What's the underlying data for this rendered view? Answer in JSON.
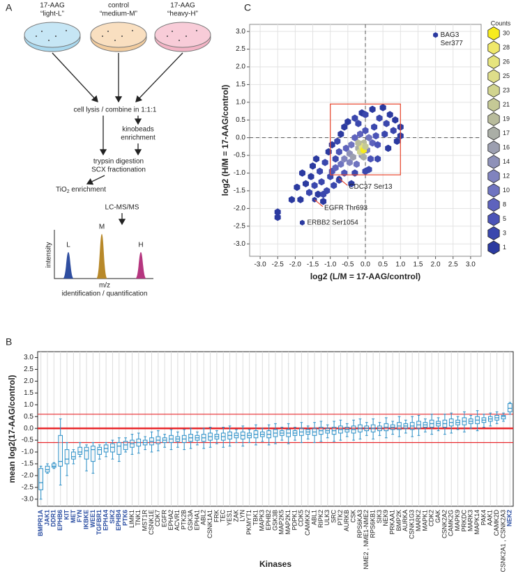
{
  "panels": {
    "a": "A",
    "b": "B",
    "c": "C"
  },
  "diagram": {
    "dish1": [
      "17-AAG",
      "“light-L”"
    ],
    "dish2": [
      "control",
      "“medium-M”"
    ],
    "dish3": [
      "17-AAG",
      "“heavy-H”"
    ],
    "lysis": "cell lysis / combine in 1:1:1",
    "kinobeads": [
      "kinobeads",
      "enrichment"
    ],
    "digestion": [
      "trypsin digestion",
      "SCX fractionation"
    ],
    "tio2": {
      "main": "TiO",
      "sub": "2",
      "rest": " enrichment"
    },
    "lcms": "LC-MS/MS",
    "peaks": [
      "L",
      "M",
      "H"
    ],
    "intensity": "intensity",
    "mz": "m/z",
    "ident": "identification / quantification"
  },
  "chart_data": [
    {
      "type": "hexbin",
      "xlabel": "log2 (L/M  = 17-AAG/control)",
      "ylabel": "log2 (H/M = 17-AAG/control)",
      "xlim": [
        -3.3,
        3.3
      ],
      "ylim": [
        -3.35,
        3.2
      ],
      "xticks": [
        {
          "value": -3,
          "label": "-3.0"
        },
        {
          "value": -2.5,
          "label": "-2.5"
        },
        {
          "value": -2,
          "label": "-2.0"
        },
        {
          "value": -1.5,
          "label": "-1.5"
        },
        {
          "value": -1,
          "label": "-1.0"
        },
        {
          "value": -0.5,
          "label": "-0.5"
        },
        {
          "value": 0,
          "label": "0.0"
        },
        {
          "value": 0.5,
          "label": "0.5"
        },
        {
          "value": 1,
          "label": "1.0"
        },
        {
          "value": 1.5,
          "label": "1.5"
        },
        {
          "value": 2,
          "label": "2.0"
        },
        {
          "value": 2.5,
          "label": "2.5"
        },
        {
          "value": 3,
          "label": "3.0"
        }
      ],
      "yticks": [
        {
          "value": -3,
          "label": "-3.0"
        },
        {
          "value": -2.5,
          "label": "-2.5"
        },
        {
          "value": -2,
          "label": "-2.0"
        },
        {
          "value": -1.5,
          "label": "-1.5"
        },
        {
          "value": -1,
          "label": "-1.0"
        },
        {
          "value": -0.5,
          "label": "-0.5"
        },
        {
          "value": 0,
          "label": "0.0"
        },
        {
          "value": 0.5,
          "label": "0.5"
        },
        {
          "value": 1,
          "label": "1.0"
        },
        {
          "value": 1.5,
          "label": "1.5"
        },
        {
          "value": 2,
          "label": "2.0"
        },
        {
          "value": 2.5,
          "label": "2.5"
        },
        {
          "value": 3,
          "label": "3.0"
        }
      ],
      "grid": true,
      "dashed_lines": {
        "x": 0,
        "y": 0
      },
      "highlight_box": {
        "xlim": [
          -1.0,
          1.0
        ],
        "ylim": [
          -1.05,
          0.95
        ],
        "color": "#e8452c"
      },
      "points": [
        [
          -2.5,
          -2.1,
          1
        ],
        [
          -2.5,
          -2.25,
          1
        ],
        [
          -2.1,
          -1.75,
          1
        ],
        [
          -1.95,
          -1.4,
          1
        ],
        [
          -1.85,
          -1.75,
          1
        ],
        [
          -1.8,
          -1.0,
          1
        ],
        [
          -1.7,
          -1.3,
          1
        ],
        [
          -1.6,
          -1.55,
          2
        ],
        [
          -1.55,
          -1.1,
          1
        ],
        [
          -1.5,
          -0.8,
          1
        ],
        [
          -1.45,
          -1.35,
          2
        ],
        [
          -1.4,
          -0.6,
          1
        ],
        [
          -1.35,
          -1.6,
          1
        ],
        [
          -1.3,
          -0.95,
          2
        ],
        [
          -1.25,
          -1.25,
          3
        ],
        [
          -1.2,
          -1.8,
          1
        ],
        [
          -1.15,
          -0.7,
          2
        ],
        [
          -1.1,
          -1.5,
          2
        ],
        [
          -1.05,
          -0.4,
          1
        ],
        [
          -1.0,
          -1.1,
          3
        ],
        [
          -0.95,
          -0.2,
          1
        ],
        [
          -0.9,
          -1.35,
          3
        ],
        [
          -0.85,
          -0.6,
          3
        ],
        [
          -0.8,
          -0.1,
          2
        ],
        [
          -0.75,
          -1.2,
          3
        ],
        [
          -0.7,
          0.1,
          1
        ],
        [
          -0.6,
          0.3,
          1
        ],
        [
          -0.5,
          0.45,
          1
        ],
        [
          -0.4,
          -1.3,
          1
        ],
        [
          -0.3,
          0.55,
          2
        ],
        [
          -0.2,
          0.4,
          3
        ],
        [
          -0.1,
          0.7,
          1
        ],
        [
          0,
          0.65,
          2
        ],
        [
          0.1,
          -0.9,
          2
        ],
        [
          0.2,
          0.8,
          1
        ],
        [
          0.25,
          0.3,
          3
        ],
        [
          0.35,
          -0.6,
          2
        ],
        [
          0.4,
          0.55,
          2
        ],
        [
          0.5,
          0.85,
          1
        ],
        [
          0.55,
          0.1,
          3
        ],
        [
          0.6,
          0.4,
          2
        ],
        [
          0.65,
          -0.3,
          1
        ],
        [
          0.7,
          0.65,
          1
        ],
        [
          0.8,
          0.2,
          2
        ],
        [
          0.85,
          0.5,
          1
        ],
        [
          0.9,
          -0.1,
          1
        ],
        [
          1.0,
          0.3,
          1
        ],
        [
          1.0,
          0.05,
          1
        ],
        [
          -0.95,
          -0.95,
          5
        ],
        [
          -0.6,
          -1.0,
          5
        ],
        [
          -0.3,
          -1.0,
          3
        ],
        [
          0,
          -0.95,
          2
        ],
        [
          -1.2,
          -1.6,
          2
        ],
        [
          -0.85,
          -0.85,
          8
        ],
        [
          -0.7,
          -0.75,
          10
        ],
        [
          -0.75,
          -0.4,
          5
        ],
        [
          -0.6,
          -0.6,
          12
        ],
        [
          -0.55,
          -0.3,
          8
        ],
        [
          -0.45,
          -0.7,
          12
        ],
        [
          -0.45,
          -0.45,
          14
        ],
        [
          -0.4,
          -0.2,
          10
        ],
        [
          -0.35,
          -0.55,
          16
        ],
        [
          -0.3,
          0,
          8
        ],
        [
          -0.25,
          -0.75,
          10
        ],
        [
          -0.2,
          -0.3,
          17
        ],
        [
          -0.15,
          0.1,
          8
        ],
        [
          -0.1,
          -0.5,
          14
        ],
        [
          -0.05,
          -0.15,
          19
        ],
        [
          0,
          0.2,
          5
        ],
        [
          0.05,
          -0.35,
          12
        ],
        [
          0.1,
          0,
          10
        ],
        [
          0.15,
          -0.6,
          5
        ],
        [
          0.2,
          -0.15,
          8
        ],
        [
          0.3,
          0.05,
          5
        ],
        [
          0.35,
          -0.2,
          5
        ],
        [
          -0.15,
          -0.4,
          23
        ],
        [
          -0.1,
          -0.25,
          26
        ],
        [
          -0.05,
          -0.35,
          30
        ],
        [
          0,
          -0.25,
          21
        ],
        [
          -0.2,
          -0.15,
          19
        ],
        [
          -0.05,
          -0.55,
          17
        ]
      ],
      "annotations": [
        {
          "lines": [
            "BAG3",
            "Ser377"
          ],
          "x": 2.0,
          "y": 2.9,
          "count": 1,
          "connector": false
        },
        {
          "lines": [
            "ERBB2 Ser1054"
          ],
          "x": -1.8,
          "y": -2.4,
          "count": 1,
          "connector": false
        },
        {
          "lines": [
            "EGFR Thr693"
          ],
          "x": -1.45,
          "y": -1.75,
          "count": 1,
          "connector": true
        },
        {
          "lines": [
            "CDC37 Ser13"
          ],
          "x": -0.75,
          "y": -1.15,
          "count": 1,
          "connector": true
        }
      ],
      "color_scale": {
        "title": "Counts",
        "levels": [
          30,
          28,
          26,
          25,
          23,
          21,
          19,
          17,
          16,
          14,
          12,
          10,
          8,
          5,
          3,
          1
        ],
        "colors": [
          "#f7ec1e",
          "#efe86a",
          "#e6e47e",
          "#dedd8a",
          "#d1d48f",
          "#c5c996",
          "#b8bb9c",
          "#aaaea6",
          "#9c9fb0",
          "#8e91b8",
          "#8083be",
          "#6f74c0",
          "#5e63bd",
          "#4b54b7",
          "#3a47ad",
          "#2b3aa0"
        ]
      }
    },
    {
      "type": "box",
      "xlabel": "Kinases",
      "ylabel": "mean log2(17-AAG/control)",
      "ylim": [
        -3.3,
        3.25
      ],
      "yticks": [
        {
          "value": -3,
          "label": "-3.0"
        },
        {
          "value": -2.5,
          "label": "-2.5"
        },
        {
          "value": -2,
          "label": "-2.0"
        },
        {
          "value": -1.5,
          "label": "-1.5"
        },
        {
          "value": -1,
          "label": "-1.0"
        },
        {
          "value": -0.5,
          "label": "-0.5"
        },
        {
          "value": 0,
          "label": "0.0"
        },
        {
          "value": 0.5,
          "label": "0.5"
        },
        {
          "value": 1,
          "label": "1.0"
        },
        {
          "value": 1.5,
          "label": "1.5"
        },
        {
          "value": 2,
          "label": "2.0"
        },
        {
          "value": 2.5,
          "label": "2.5"
        },
        {
          "value": 3,
          "label": "3.0"
        }
      ],
      "grid": true,
      "color": "#2a8fc7",
      "reference_lines": [
        -0.6,
        0,
        0.6
      ],
      "reference_color": "#e8262a",
      "highlight_color": "#2b4ea2",
      "highlighted": [
        0,
        1,
        2,
        3,
        4,
        5,
        6,
        7,
        8,
        9,
        10,
        11,
        12,
        13,
        72
      ],
      "categories": [
        "BMPR1A",
        "JAK1",
        "DDR1",
        "EPHB6",
        "KIT",
        "MET",
        "FYN",
        "IKBKE",
        "WEE1",
        "TGFBR1",
        "EPHA4",
        "SIK2",
        "EPHB4",
        "PTK6",
        "LIMK1",
        "TNK1",
        "MST1R",
        "CSNK1E",
        "CDK7",
        "EGFR",
        "EPHA2",
        "ACVR1",
        "PTK2B",
        "GSK3A",
        "EPHA1",
        "ABL2",
        "CSNK1A1",
        "FRK",
        "TEC",
        "YES1",
        "ZAK",
        "LYN",
        "PKMYT1",
        "TBK1",
        "MAPK3",
        "EPHB2",
        "GSK3B",
        "MAP2K5",
        "MAP2K1",
        "PDPK1",
        "CDK5",
        "CAMKK2",
        "ABL1",
        "RIPK2",
        "ULK3",
        "SRC",
        "PTK2",
        "AURKB",
        "CSK",
        "RPS6KA3",
        "NME2 , NME1-NME2",
        "RPS6KB1",
        "SIK3",
        "NEK9",
        "PRKAA1",
        "BMP2K",
        "AURKA",
        "CSNK1G3",
        "MARK2",
        "MAPK1",
        "CDK2",
        "GAK",
        "CSNK2A2",
        "CAMK2G",
        "MAPK9",
        "PRKDC",
        "MARK3",
        "MAPK14",
        "PAK4",
        "AAK1",
        "CAMK2D",
        "CSNK2A1 , CSNK2A3",
        "NEK2"
      ],
      "boxes": [
        [
          -3.0,
          -2.6,
          -2.3,
          -1.7,
          -1.6
        ],
        [
          -1.9,
          -1.85,
          -1.75,
          -1.6,
          -1.5
        ],
        [
          -1.7,
          -1.65,
          -1.6,
          -1.5,
          -1.45
        ],
        [
          -2.4,
          -1.6,
          -1.4,
          -0.3,
          0.4
        ],
        [
          -2.0,
          -1.5,
          -1.3,
          -0.9,
          -0.6
        ],
        [
          -1.5,
          -1.3,
          -1.2,
          -1.0,
          -0.9
        ],
        [
          -1.2,
          -1.1,
          -1.0,
          -0.8,
          -0.6
        ],
        [
          -1.8,
          -1.3,
          -0.95,
          -0.8,
          -0.7
        ],
        [
          -1.9,
          -1.4,
          -0.9,
          -0.75,
          -0.6
        ],
        [
          -1.3,
          -1.1,
          -0.9,
          -0.8,
          -0.7
        ],
        [
          -1.2,
          -1.0,
          -0.85,
          -0.7,
          -0.6
        ],
        [
          -1.3,
          -1.0,
          -0.8,
          -0.65,
          -0.5
        ],
        [
          -1.4,
          -1.1,
          -0.75,
          -0.6,
          -0.4
        ],
        [
          -1.0,
          -0.9,
          -0.7,
          -0.55,
          -0.4
        ],
        [
          -1.1,
          -0.8,
          -0.65,
          -0.5,
          -0.25
        ],
        [
          -1.05,
          -0.75,
          -0.6,
          -0.45,
          -0.2
        ],
        [
          -0.9,
          -0.7,
          -0.6,
          -0.5,
          -0.35
        ],
        [
          -1.0,
          -0.7,
          -0.55,
          -0.4,
          -0.15
        ],
        [
          -0.95,
          -0.65,
          -0.5,
          -0.35,
          -0.1
        ],
        [
          -0.8,
          -0.6,
          -0.5,
          -0.4,
          -0.25
        ],
        [
          -0.9,
          -0.6,
          -0.45,
          -0.3,
          -0.05
        ],
        [
          -0.8,
          -0.55,
          -0.45,
          -0.35,
          -0.15
        ],
        [
          -0.9,
          -0.6,
          -0.45,
          -0.3,
          -0.05
        ],
        [
          -0.85,
          -0.55,
          -0.4,
          -0.25,
          0
        ],
        [
          -0.7,
          -0.5,
          -0.4,
          -0.3,
          -0.15
        ],
        [
          -0.85,
          -0.55,
          -0.4,
          -0.25,
          0
        ],
        [
          -0.8,
          -0.5,
          -0.35,
          -0.2,
          0.05
        ],
        [
          -0.65,
          -0.45,
          -0.35,
          -0.25,
          -0.1
        ],
        [
          -0.8,
          -0.5,
          -0.35,
          -0.2,
          0.05
        ],
        [
          -0.75,
          -0.45,
          -0.3,
          -0.15,
          0.1
        ],
        [
          -0.6,
          -0.4,
          -0.3,
          -0.2,
          -0.05
        ],
        [
          -0.75,
          -0.45,
          -0.3,
          -0.15,
          0.1
        ],
        [
          -0.6,
          -0.4,
          -0.3,
          -0.2,
          -0.05
        ],
        [
          -0.7,
          -0.4,
          -0.25,
          -0.1,
          0.15
        ],
        [
          -0.55,
          -0.35,
          -0.25,
          -0.15,
          0
        ],
        [
          -0.7,
          -0.4,
          -0.25,
          -0.1,
          0.15
        ],
        [
          -0.65,
          -0.35,
          -0.2,
          -0.05,
          0.2
        ],
        [
          -0.5,
          -0.3,
          -0.2,
          -0.1,
          0.05
        ],
        [
          -0.65,
          -0.35,
          -0.2,
          -0.05,
          0.2
        ],
        [
          -0.5,
          -0.3,
          -0.2,
          -0.1,
          0.05
        ],
        [
          -0.6,
          -0.3,
          -0.15,
          0,
          0.25
        ],
        [
          -0.45,
          -0.25,
          -0.15,
          -0.05,
          0.1
        ],
        [
          -0.6,
          -0.3,
          -0.15,
          0,
          0.25
        ],
        [
          -0.55,
          -0.25,
          -0.1,
          0.05,
          0.3
        ],
        [
          -0.4,
          -0.2,
          -0.1,
          0,
          0.15
        ],
        [
          -0.55,
          -0.25,
          -0.1,
          0.05,
          0.3
        ],
        [
          -0.5,
          -0.2,
          -0.05,
          0.1,
          0.35
        ],
        [
          -0.35,
          -0.15,
          -0.05,
          0.05,
          0.2
        ],
        [
          -0.5,
          -0.2,
          -0.05,
          0.1,
          0.35
        ],
        [
          -0.45,
          -0.15,
          0,
          0.15,
          0.4
        ],
        [
          -0.3,
          -0.1,
          0,
          0.1,
          0.25
        ],
        [
          -0.45,
          -0.15,
          0,
          0.15,
          0.4
        ],
        [
          -0.3,
          -0.1,
          0,
          0.1,
          0.25
        ],
        [
          -0.4,
          -0.1,
          0.05,
          0.2,
          0.45
        ],
        [
          -0.25,
          -0.05,
          0.05,
          0.15,
          0.3
        ],
        [
          -0.35,
          -0.05,
          0.1,
          0.25,
          0.5
        ],
        [
          -0.2,
          0,
          0.1,
          0.2,
          0.35
        ],
        [
          -0.35,
          -0.05,
          0.1,
          0.25,
          0.5
        ],
        [
          -0.3,
          0,
          0.15,
          0.3,
          0.55
        ],
        [
          -0.15,
          0.05,
          0.15,
          0.25,
          0.4
        ],
        [
          -0.25,
          0.05,
          0.2,
          0.35,
          0.6
        ],
        [
          -0.1,
          0.1,
          0.2,
          0.3,
          0.45
        ],
        [
          -0.25,
          0.05,
          0.2,
          0.35,
          0.6
        ],
        [
          -0.2,
          0.1,
          0.25,
          0.4,
          0.65
        ],
        [
          -0.05,
          0.15,
          0.25,
          0.35,
          0.5
        ],
        [
          -0.15,
          0.15,
          0.3,
          0.45,
          0.7
        ],
        [
          0,
          0.2,
          0.3,
          0.4,
          0.55
        ],
        [
          -0.1,
          0.2,
          0.35,
          0.5,
          0.75
        ],
        [
          0.05,
          0.25,
          0.35,
          0.45,
          0.6
        ],
        [
          0.1,
          0.3,
          0.4,
          0.5,
          0.65
        ],
        [
          0.2,
          0.35,
          0.45,
          0.55,
          0.7
        ],
        [
          0.3,
          0.4,
          0.5,
          0.55,
          0.65
        ],
        [
          0.6,
          0.7,
          0.85,
          1.05,
          1.1
        ]
      ]
    }
  ]
}
